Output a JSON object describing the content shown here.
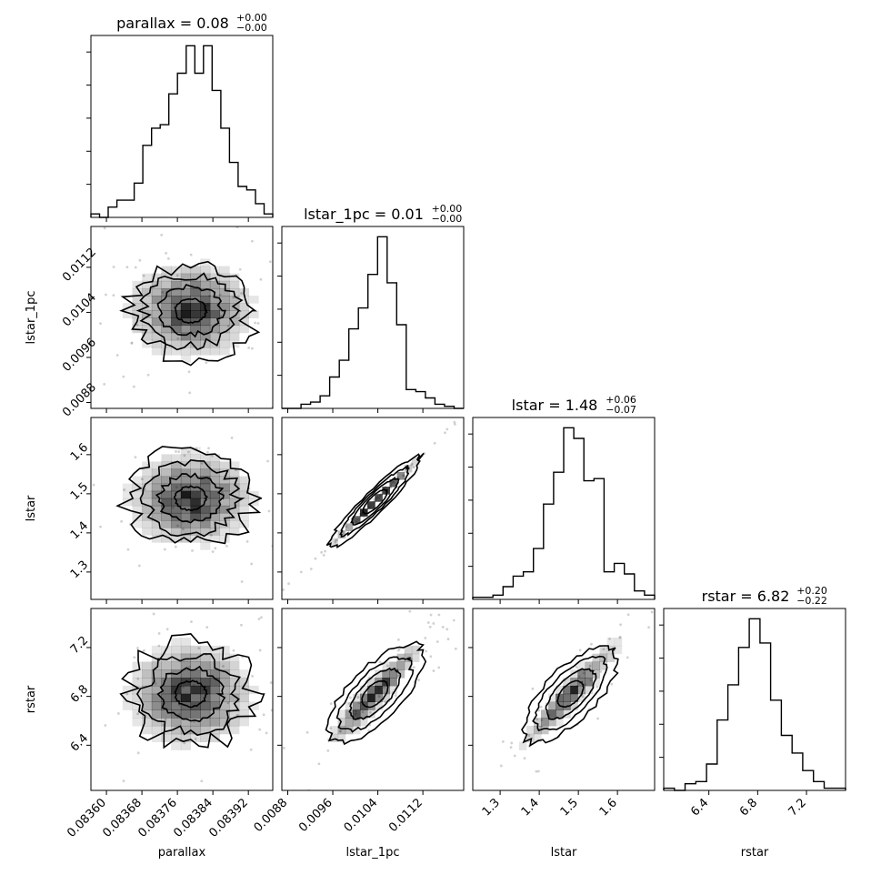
{
  "chart_data": {
    "type": "corner",
    "parameters": [
      {
        "name": "parallax",
        "title_prefix": "parallax = 0.08",
        "title_plus": "+0.00",
        "title_minus": "−0.00",
        "range": [
          0.083565,
          0.083975
        ],
        "ticks": [
          0.0836,
          0.08368,
          0.08376,
          0.08384,
          0.08392
        ],
        "tick_labels": [
          "0.08360",
          "0.08368",
          "0.08376",
          "0.08384",
          "0.08392"
        ],
        "hist_counts": [
          1,
          0,
          3,
          5,
          5,
          10,
          21,
          26,
          27,
          36,
          42,
          50,
          42,
          50,
          37,
          26,
          16,
          9,
          8,
          4,
          1
        ]
      },
      {
        "name": "lstar_1pc",
        "title_prefix": "lstar_1pc = 0.01",
        "title_plus": "+0.00",
        "title_minus": "−0.00",
        "range": [
          0.008695,
          0.011925
        ],
        "ticks": [
          0.0088,
          0.0096,
          0.0104,
          0.0112
        ],
        "tick_labels": [
          "0.0088",
          "0.0096",
          "0.0104",
          "0.0112"
        ],
        "hist_counts": [
          0,
          0,
          2,
          3,
          6,
          15,
          23,
          38,
          48,
          64,
          82,
          60,
          40,
          9,
          8,
          5,
          2,
          1,
          0
        ]
      },
      {
        "name": "lstar",
        "title_prefix": "lstar = 1.48",
        "title_plus": "+0.06",
        "title_minus": "−0.07",
        "range": [
          1.23,
          1.695
        ],
        "ticks": [
          1.3,
          1.4,
          1.5,
          1.6
        ],
        "tick_labels": [
          "1.3",
          "1.4",
          "1.5",
          "1.6"
        ],
        "hist_counts": [
          1,
          1,
          2,
          6,
          11,
          13,
          24,
          45,
          60,
          81,
          76,
          56,
          57,
          13,
          17,
          12,
          4,
          2
        ]
      },
      {
        "name": "rstar",
        "title_prefix": "rstar = 6.82",
        "title_plus": "+0.20",
        "title_minus": "−0.22",
        "range": [
          6.03,
          7.52
        ],
        "ticks": [
          6.4,
          6.8,
          7.2
        ],
        "tick_labels": [
          "6.4",
          "6.8",
          "7.2"
        ],
        "hist_counts": [
          1,
          0,
          3,
          4,
          12,
          32,
          48,
          65,
          78,
          67,
          41,
          25,
          17,
          9,
          4,
          1,
          1
        ]
      }
    ],
    "correlation_pairs": [
      {
        "x": "parallax",
        "y": "lstar_1pc",
        "center": [
          0.08379,
          0.01043
        ],
        "sigma": [
          7e-05,
          0.00042
        ],
        "rho": 0.0
      },
      {
        "x": "parallax",
        "y": "lstar",
        "center": [
          0.08379,
          1.488
        ],
        "sigma": [
          7e-05,
          0.06
        ],
        "rho": 0.0
      },
      {
        "x": "parallax",
        "y": "rstar",
        "center": [
          0.08379,
          6.82
        ],
        "sigma": [
          7e-05,
          0.21
        ],
        "rho": 0.0
      },
      {
        "x": "lstar_1pc",
        "y": "lstar",
        "center": [
          0.01035,
          1.48
        ],
        "sigma": [
          0.00042,
          0.06
        ],
        "rho": 0.999
      },
      {
        "x": "lstar_1pc",
        "y": "rstar",
        "center": [
          0.01035,
          6.82
        ],
        "sigma": [
          0.00042,
          0.21
        ],
        "rho": 0.94
      },
      {
        "x": "lstar",
        "y": "rstar",
        "center": [
          1.48,
          6.82
        ],
        "sigma": [
          0.06,
          0.21
        ],
        "rho": 0.94
      }
    ],
    "colors": {
      "line": "#000000",
      "density": "#000000",
      "points": "#999999"
    }
  }
}
